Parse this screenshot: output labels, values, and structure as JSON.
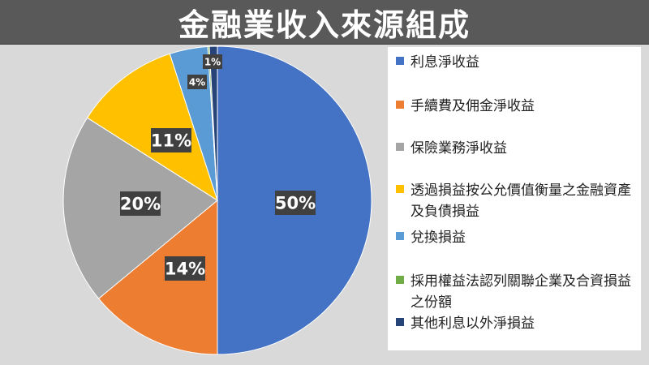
{
  "title": "金融業收入來源組成",
  "colors": {
    "background": "#d9d9d9",
    "title_bar": "#595959",
    "legend_bg": "#ffffff",
    "data_label_bg": "#404040"
  },
  "chart_data": {
    "type": "pie",
    "title": "金融業收入來源組成",
    "legend_position": "right",
    "slices": [
      {
        "label": "利息淨收益",
        "value": 50,
        "display": "50%",
        "color": "#4472c4"
      },
      {
        "label": "手續費及佣金淨收益",
        "value": 14,
        "display": "14%",
        "color": "#ed7d31"
      },
      {
        "label": "保險業務淨收益",
        "value": 20,
        "display": "20%",
        "color": "#a5a5a5"
      },
      {
        "label": "透過損益按公允價值衡量之金融資產及負債損益",
        "value": 11,
        "display": "11%",
        "color": "#ffc000"
      },
      {
        "label": "兌換損益",
        "value": 4,
        "display": "4%",
        "color": "#5b9bd5"
      },
      {
        "label": "採用權益法認列關聯企業及合資損益之份額",
        "value": 0,
        "display": "",
        "color": "#70ad47"
      },
      {
        "label": "其他利息以外淨損益",
        "value": 1,
        "display": "1%",
        "color": "#264478"
      }
    ]
  }
}
